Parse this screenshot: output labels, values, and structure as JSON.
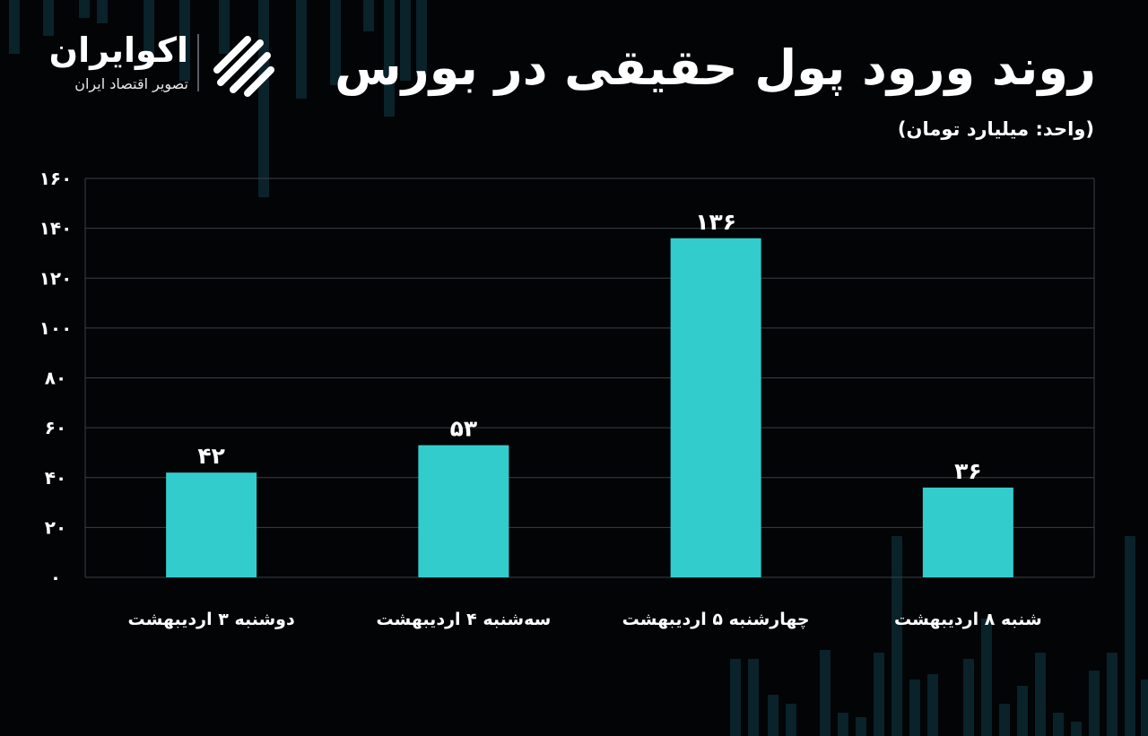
{
  "header": {
    "title": "روند ورود پول حقیقی در بورس",
    "unit_label": "(واحد: میلیارد تومان)"
  },
  "brand": {
    "name": "اکوایران",
    "tagline": "تصویر اقتصاد ایران",
    "logo_icon": "ecoiran-swirl-icon"
  },
  "colors": {
    "background": "#030406",
    "bar": "#33cccc",
    "grid": "#3a3f47",
    "text": "#ffffff",
    "background_candles": "#0c2a33"
  },
  "chart_data": {
    "type": "bar",
    "title": "روند ورود پول حقیقی در بورس",
    "subtitle": "(واحد: میلیارد تومان)",
    "categories": [
      "شنبه ۸ اردیبهشت",
      "چهارشنبه ۵ اردیبهشت",
      "سه‌شنبه ۴ اردیبهشت",
      "دوشنبه ۳ اردیبهشت"
    ],
    "values": [
      36,
      136,
      53,
      42
    ],
    "value_labels": [
      "۳۶",
      "۱۳۶",
      "۵۳",
      "۴۲"
    ],
    "ylim": [
      0,
      160
    ],
    "yticks": [
      0,
      20,
      40,
      60,
      80,
      100,
      120,
      140,
      160
    ],
    "ytick_labels": [
      "۰",
      "۲۰",
      "۴۰",
      "۶۰",
      "۸۰",
      "۱۰۰",
      "۱۲۰",
      "۱۴۰",
      "۱۶۰"
    ],
    "direction": "rtl",
    "grid": true,
    "legend": "none"
  }
}
